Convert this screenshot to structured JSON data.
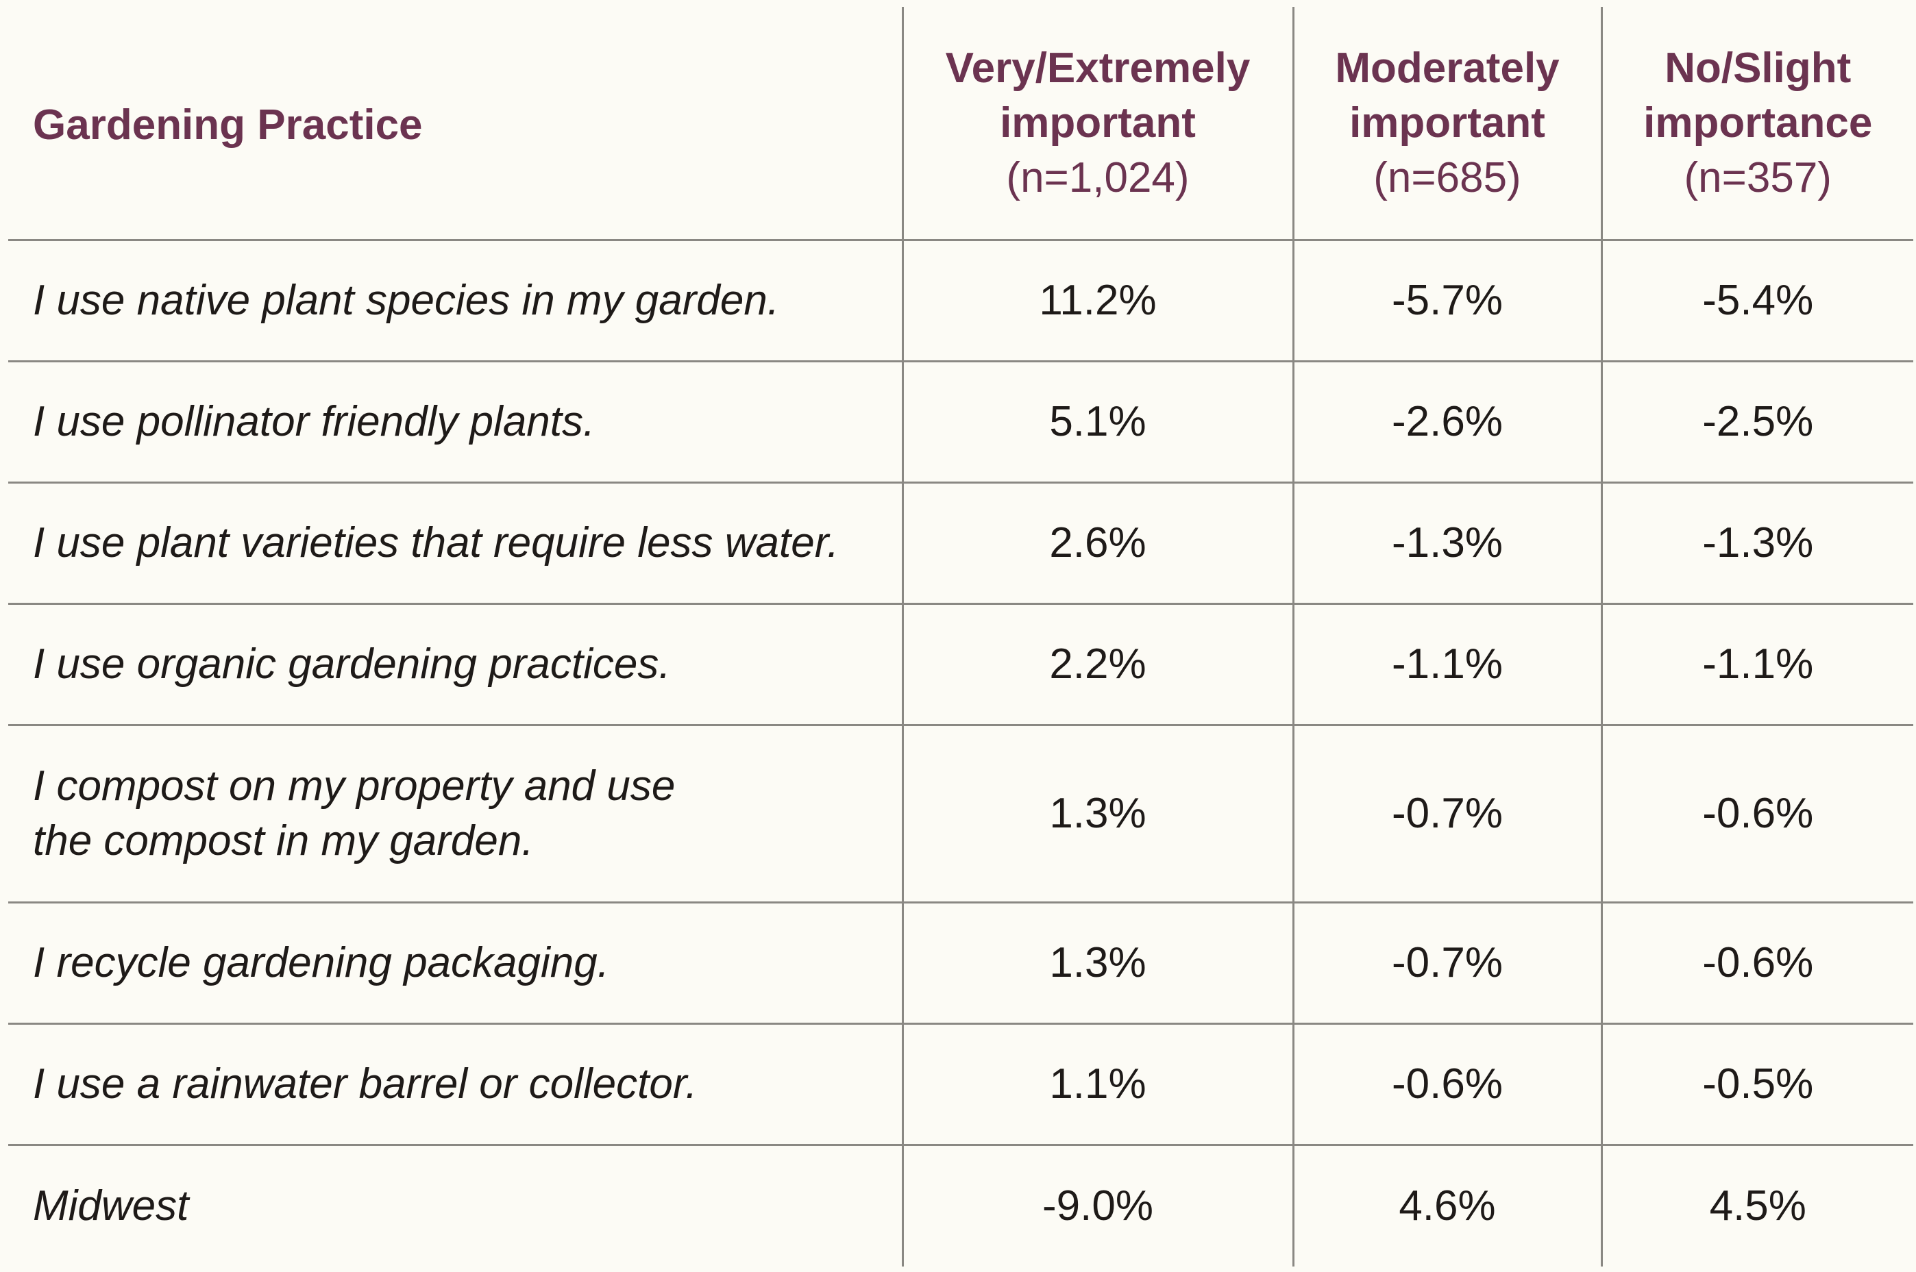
{
  "table": {
    "header": {
      "practice": "Gardening Practice",
      "columns": [
        {
          "line1": "Very/Extremely",
          "line2": "important",
          "n": "(n=1,024)"
        },
        {
          "line1": "Moderately",
          "line2": "important",
          "n": "(n=685)"
        },
        {
          "line1": "No/Slight",
          "line2": "importance",
          "n": "(n=357)"
        }
      ]
    },
    "rows": [
      {
        "practice": [
          "I use native plant species in my garden."
        ],
        "values": [
          "11.2%",
          "-5.7%",
          "-5.4%"
        ]
      },
      {
        "practice": [
          "I use pollinator friendly plants."
        ],
        "values": [
          "5.1%",
          "-2.6%",
          "-2.5%"
        ]
      },
      {
        "practice": [
          "I use plant varieties that require less water."
        ],
        "values": [
          "2.6%",
          "-1.3%",
          "-1.3%"
        ]
      },
      {
        "practice": [
          "I use organic gardening practices."
        ],
        "values": [
          "2.2%",
          "-1.1%",
          "-1.1%"
        ]
      },
      {
        "practice": [
          "I compost on my property and use",
          "the compost in my garden."
        ],
        "values": [
          "1.3%",
          "-0.7%",
          "-0.6%"
        ]
      },
      {
        "practice": [
          "I recycle gardening packaging."
        ],
        "values": [
          "1.3%",
          "-0.7%",
          "-0.6%"
        ]
      },
      {
        "practice": [
          "I use a rainwater barrel or collector."
        ],
        "values": [
          "1.1%",
          "-0.6%",
          "-0.5%"
        ]
      },
      {
        "practice": [
          "Midwest"
        ],
        "values": [
          "-9.0%",
          "4.6%",
          "4.5%"
        ]
      }
    ]
  },
  "colors": {
    "header_text": "#6b3350",
    "body_text": "#1e1a18",
    "rule": "#8a8883",
    "background": "#fcfbf5"
  }
}
